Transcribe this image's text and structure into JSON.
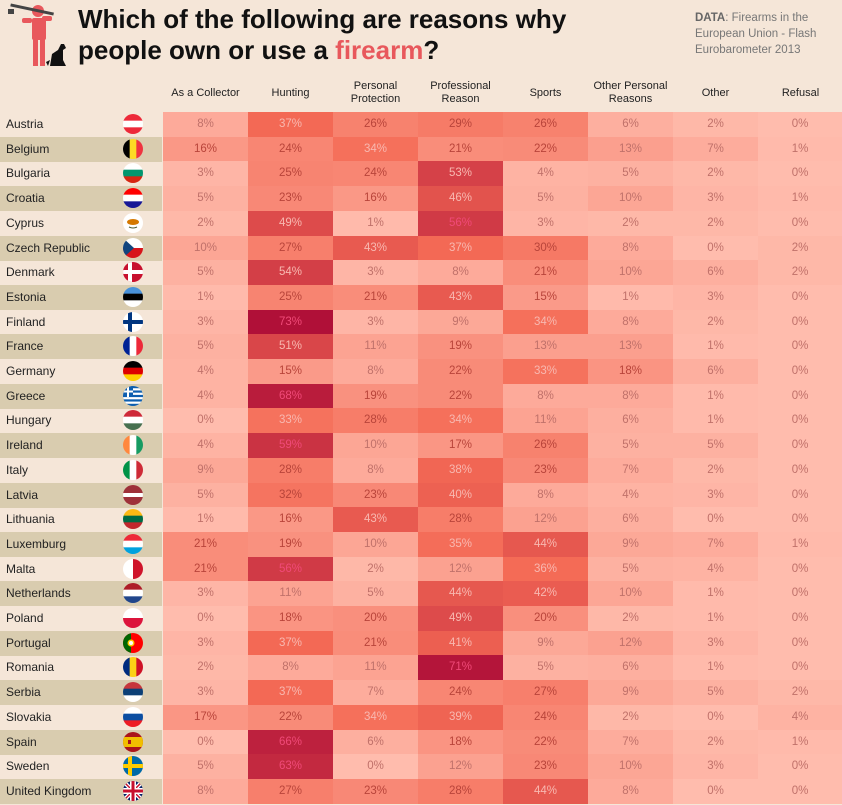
{
  "header": {
    "title_line1": "Which of the following are reasons why",
    "title_line2_prefix": "people own or use a ",
    "title_line2_accent": "firearm",
    "title_line2_suffix": "?",
    "source_label": "DATA",
    "source_text": ": Firearms in the European Union - Flash Eurobarometer 2013",
    "logo_icon": "hunter-with-dog-icon"
  },
  "colors": {
    "background": "#f5e6d8",
    "alt_row": "#d9ccaf",
    "accent": "#e8585c",
    "scale_low": "#ffbcad",
    "scale_mid": "#f46a55",
    "scale_high": "#b01038"
  },
  "chart_data": {
    "type": "heatmap",
    "title": "Which of the following are reasons why people own or use a firearm?",
    "source": "DATA: Firearms in the European Union - Flash Eurobarometer 2013",
    "unit": "%",
    "columns": [
      "As a Collector",
      "Hunting",
      "Personal Protection",
      "Professional Reason",
      "Sports",
      "Other Personal Reasons",
      "Other",
      "Refusal"
    ],
    "rows": [
      {
        "country": "Austria",
        "flag": "flag-austria",
        "values": [
          8,
          37,
          26,
          29,
          26,
          6,
          2,
          0
        ]
      },
      {
        "country": "Belgium",
        "flag": "flag-belgium",
        "values": [
          16,
          24,
          34,
          21,
          22,
          13,
          7,
          1
        ]
      },
      {
        "country": "Bulgaria",
        "flag": "flag-bulgaria",
        "values": [
          3,
          25,
          24,
          53,
          4,
          5,
          2,
          0
        ]
      },
      {
        "country": "Croatia",
        "flag": "flag-croatia",
        "values": [
          5,
          23,
          16,
          46,
          5,
          10,
          3,
          1
        ]
      },
      {
        "country": "Cyprus",
        "flag": "flag-cyprus",
        "values": [
          2,
          49,
          1,
          56,
          3,
          2,
          2,
          0
        ]
      },
      {
        "country": "Czech Republic",
        "flag": "flag-czech-republic",
        "values": [
          10,
          27,
          43,
          37,
          30,
          8,
          0,
          2
        ]
      },
      {
        "country": "Denmark",
        "flag": "flag-denmark",
        "values": [
          5,
          54,
          3,
          8,
          21,
          10,
          6,
          2
        ]
      },
      {
        "country": "Estonia",
        "flag": "flag-estonia",
        "values": [
          1,
          25,
          21,
          43,
          15,
          1,
          3,
          0
        ]
      },
      {
        "country": "Finland",
        "flag": "flag-finland",
        "values": [
          3,
          73,
          3,
          9,
          34,
          8,
          2,
          0
        ]
      },
      {
        "country": "France",
        "flag": "flag-france",
        "values": [
          5,
          51,
          11,
          19,
          13,
          13,
          1,
          0
        ]
      },
      {
        "country": "Germany",
        "flag": "flag-germany",
        "values": [
          4,
          15,
          8,
          22,
          33,
          18,
          6,
          0
        ]
      },
      {
        "country": "Greece",
        "flag": "flag-greece",
        "values": [
          4,
          68,
          19,
          22,
          8,
          8,
          1,
          0
        ]
      },
      {
        "country": "Hungary",
        "flag": "flag-hungary",
        "values": [
          0,
          33,
          28,
          34,
          11,
          6,
          1,
          0
        ]
      },
      {
        "country": "Ireland",
        "flag": "flag-ireland",
        "values": [
          4,
          59,
          10,
          17,
          26,
          5,
          5,
          0
        ]
      },
      {
        "country": "Italy",
        "flag": "flag-italy",
        "values": [
          9,
          28,
          8,
          38,
          23,
          7,
          2,
          0
        ]
      },
      {
        "country": "Latvia",
        "flag": "flag-latvia",
        "values": [
          5,
          32,
          23,
          40,
          8,
          4,
          3,
          0
        ]
      },
      {
        "country": "Lithuania",
        "flag": "flag-lithuania",
        "values": [
          1,
          16,
          43,
          28,
          12,
          6,
          0,
          0
        ]
      },
      {
        "country": "Luxemburg",
        "flag": "flag-luxembourg",
        "values": [
          21,
          19,
          10,
          35,
          44,
          9,
          7,
          1
        ]
      },
      {
        "country": "Malta",
        "flag": "flag-malta",
        "values": [
          21,
          56,
          2,
          12,
          36,
          5,
          4,
          0
        ]
      },
      {
        "country": "Netherlands",
        "flag": "flag-netherlands",
        "values": [
          3,
          11,
          5,
          44,
          42,
          10,
          1,
          0
        ]
      },
      {
        "country": "Poland",
        "flag": "flag-poland",
        "values": [
          0,
          18,
          20,
          49,
          20,
          2,
          1,
          0
        ]
      },
      {
        "country": "Portugal",
        "flag": "flag-portugal",
        "values": [
          3,
          37,
          21,
          41,
          9,
          12,
          3,
          0
        ]
      },
      {
        "country": "Romania",
        "flag": "flag-romania",
        "values": [
          2,
          8,
          11,
          71,
          5,
          6,
          1,
          0
        ]
      },
      {
        "country": "Serbia",
        "flag": "flag-serbia",
        "values": [
          3,
          37,
          7,
          24,
          27,
          9,
          5,
          2
        ]
      },
      {
        "country": "Slovakia",
        "flag": "flag-slovakia",
        "values": [
          17,
          22,
          34,
          39,
          24,
          2,
          0,
          4
        ]
      },
      {
        "country": "Spain",
        "flag": "flag-spain",
        "values": [
          0,
          66,
          6,
          18,
          22,
          7,
          2,
          1
        ]
      },
      {
        "country": "Sweden",
        "flag": "flag-sweden",
        "values": [
          5,
          63,
          0,
          12,
          23,
          10,
          3,
          0
        ]
      },
      {
        "country": "United Kingdom",
        "flag": "flag-united-kingdom",
        "values": [
          8,
          27,
          23,
          28,
          44,
          8,
          0,
          0
        ]
      }
    ],
    "color_range": [
      0,
      73
    ]
  }
}
